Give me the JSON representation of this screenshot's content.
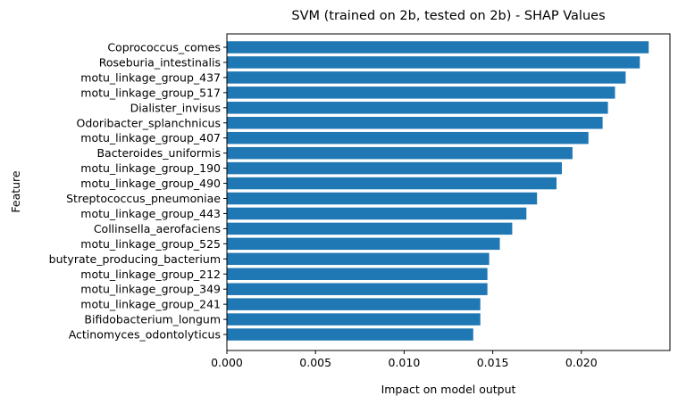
{
  "chart_data": {
    "type": "bar",
    "orientation": "horizontal",
    "title": "SVM (trained on 2b, tested on 2b) -  SHAP Values",
    "xlabel": "Impact on model output",
    "ylabel": "Feature",
    "xlim": [
      0,
      0.025
    ],
    "xticks": [
      "0.000",
      "0.005",
      "0.010",
      "0.015",
      "0.020"
    ],
    "xtick_values": [
      0,
      0.005,
      0.01,
      0.015,
      0.02
    ],
    "bar_color": "#1f77b4",
    "grid": false,
    "categories": [
      "Coprococcus_comes",
      "Roseburia_intestinalis",
      "motu_linkage_group_437",
      "motu_linkage_group_517",
      "Dialister_invisus",
      "Odoribacter_splanchnicus",
      "motu_linkage_group_407",
      "Bacteroides_uniformis",
      "motu_linkage_group_190",
      "motu_linkage_group_490",
      "Streptococcus_pneumoniae",
      "motu_linkage_group_443",
      "Collinsella_aerofaciens",
      "motu_linkage_group_525",
      "butyrate_producing_bacterium",
      "motu_linkage_group_212",
      "motu_linkage_group_349",
      "motu_linkage_group_241",
      "Bifidobacterium_longum",
      "Actinomyces_odontolyticus"
    ],
    "values": [
      0.0238,
      0.0233,
      0.0225,
      0.0219,
      0.0215,
      0.0212,
      0.0204,
      0.0195,
      0.0189,
      0.0186,
      0.0175,
      0.0169,
      0.0161,
      0.0154,
      0.0148,
      0.0147,
      0.0147,
      0.0143,
      0.0143,
      0.0139
    ]
  }
}
